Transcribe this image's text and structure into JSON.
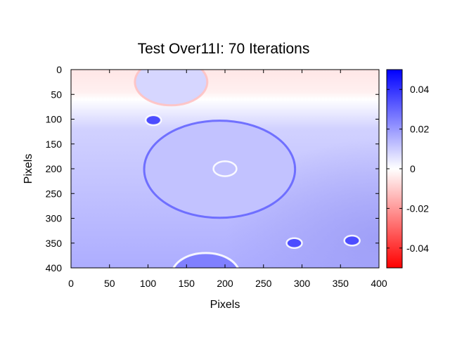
{
  "chart_data": {
    "type": "heatmap",
    "title": "Test Over11I: 70 Iterations",
    "xlabel": "Pixels",
    "ylabel": "Pixels",
    "xlim": [
      0,
      400
    ],
    "ylim": [
      400,
      0
    ],
    "x_ticks": [
      "0",
      "50",
      "100",
      "150",
      "200",
      "250",
      "300",
      "350",
      "400"
    ],
    "y_ticks": [
      "0",
      "50",
      "100",
      "150",
      "200",
      "250",
      "300",
      "350",
      "400"
    ],
    "colorbar": {
      "range": [
        -0.05,
        0.05
      ],
      "ticks": [
        "0.04",
        "0.02",
        "0",
        "-0.02",
        "-0.04"
      ],
      "tick_values": [
        0.04,
        0.02,
        0,
        -0.02,
        -0.04
      ],
      "low_color": "#ff0000",
      "mid_color": "#ffffff",
      "high_color": "#0000ff"
    },
    "background_field": {
      "top_value": -0.005,
      "zero_line_y": 60,
      "bulk_value": 0.012,
      "bottom_right_value": 0.02
    },
    "features": [
      {
        "name": "top-circle",
        "cx": 130,
        "cy": 25,
        "r": 47,
        "inner_value": 0.008,
        "rim_value": -0.012
      },
      {
        "name": "small-blob-1",
        "cx": 107,
        "cy": 102,
        "r": 10,
        "inner_value": 0.035,
        "rim_value": 0.0
      },
      {
        "name": "large-ellipse",
        "cx": 193,
        "cy": 201,
        "r": 98,
        "inner_value": 0.012,
        "rim_value": 0.03
      },
      {
        "name": "center-ring",
        "cx": 200,
        "cy": 200,
        "r": 15,
        "inner_value": 0.012,
        "rim_value": 0.0
      },
      {
        "name": "small-blob-2",
        "cx": 290,
        "cy": 350,
        "r": 10,
        "inner_value": 0.035,
        "rim_value": 0.0
      },
      {
        "name": "small-blob-3",
        "cx": 365,
        "cy": 345,
        "r": 10,
        "inner_value": 0.035,
        "rim_value": 0.0
      },
      {
        "name": "bottom-circle",
        "cx": 175,
        "cy": 414,
        "r": 44,
        "inner_value": 0.025,
        "rim_value": 0.0
      }
    ]
  }
}
